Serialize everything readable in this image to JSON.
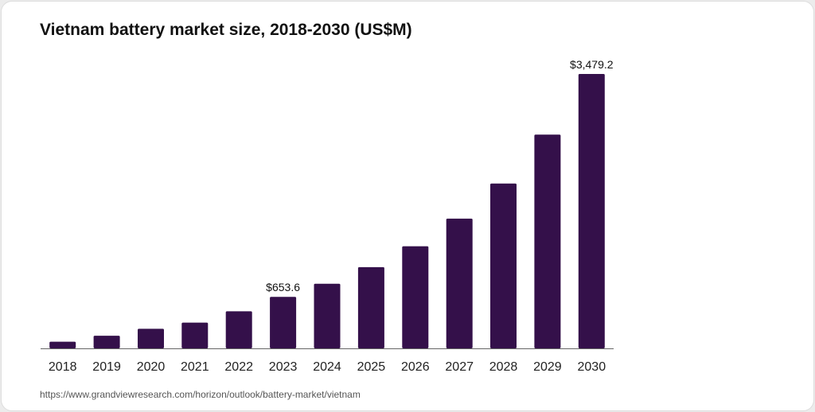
{
  "chart_data": {
    "type": "bar",
    "title": "Vietnam battery market size, 2018-2030 (US$M)",
    "xlabel": "",
    "ylabel": "",
    "categories": [
      "2018",
      "2019",
      "2020",
      "2021",
      "2022",
      "2023",
      "2024",
      "2025",
      "2026",
      "2027",
      "2028",
      "2029",
      "2030"
    ],
    "values": [
      85,
      160,
      248,
      327,
      470,
      653.6,
      820,
      1030,
      1295,
      1645,
      2090,
      2710,
      3479.2
    ],
    "data_labels": [
      {
        "category": "2023",
        "text": "$653.6"
      },
      {
        "category": "2030",
        "text": "$3,479.2"
      }
    ],
    "ylim": [
      0,
      3479.2
    ],
    "grid": false,
    "legend": "none",
    "bar_color": "#34104a"
  },
  "source": "https://www.grandviewresearch.com/horizon/outlook/battery-market/vietnam"
}
